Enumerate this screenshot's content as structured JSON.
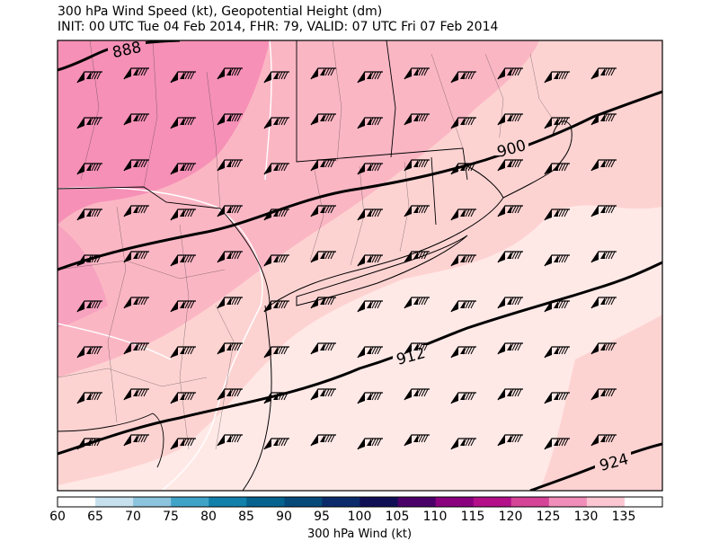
{
  "title": {
    "line1": "300 hPa Wind Speed (kt), Geopotential Height (dm)",
    "line2": "INIT: 00 UTC Tue 04 Feb 2014, FHR: 79, VALID: 07 UTC Fri 07 Feb 2014"
  },
  "contour_labels": [
    "888",
    "900",
    "912",
    "924"
  ],
  "colorbar": {
    "label": "300 hPa Wind (kt)",
    "ticks": [
      "60",
      "65",
      "70",
      "75",
      "80",
      "85",
      "90",
      "95",
      "100",
      "105",
      "110",
      "115",
      "120",
      "125",
      "130",
      "135"
    ],
    "colors": [
      "#ffffff",
      "#c6e0ee",
      "#8cc4dd",
      "#3fa3c8",
      "#1181ab",
      "#06628e",
      "#064a7a",
      "#0b2b6a",
      "#100e55",
      "#4a0068",
      "#8a007e",
      "#b3108a",
      "#d54497",
      "#f08db9",
      "#fcc7d3",
      "#ffffff"
    ]
  },
  "field_colors": {
    "light": "#ffe9e7",
    "mid": "#fdd3d2",
    "pink": "#fbb6c4",
    "deep": "#f690b6"
  }
}
